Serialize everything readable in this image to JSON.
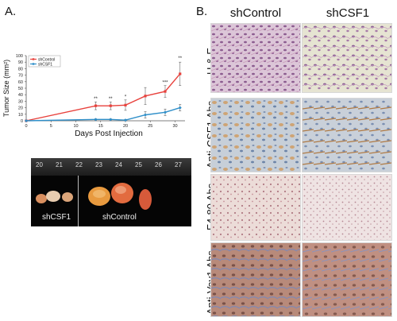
{
  "figure": {
    "panel_a_letter": "A.",
    "panel_b_letter": "B.",
    "photo": {
      "ruler_numbers": [
        "20",
        "21",
        "22",
        "23",
        "24",
        "25",
        "26",
        "27"
      ],
      "left_label": "shCSF1",
      "right_label": "shControl"
    },
    "histology": {
      "columns": [
        "shControl",
        "shCSF1"
      ],
      "rows": [
        "H & E",
        "Anti-CSF1 Abs",
        "F4-80 Abs",
        "Anti-Vav1 Abs"
      ]
    }
  },
  "chart_data": {
    "type": "line",
    "ylabel": "Tumor Size (mm²)",
    "xlabel": "Days Post Injection",
    "xlim": [
      0,
      32
    ],
    "ylim": [
      0,
      100
    ],
    "x_ticks": [
      "0",
      "5",
      "10",
      "15",
      "20",
      "25",
      "30"
    ],
    "y_ticks": [
      "0",
      "10",
      "20",
      "30",
      "40",
      "50",
      "60",
      "70",
      "80",
      "90",
      "100"
    ],
    "legend_position": "top-left",
    "series": [
      {
        "name": "shControl",
        "color": "#e8413c",
        "x": [
          0,
          14,
          17,
          20,
          24,
          28,
          31
        ],
        "values": [
          0,
          23,
          23,
          24,
          38,
          45,
          72
        ],
        "errors": [
          0,
          6,
          6,
          8,
          13,
          9,
          18
        ]
      },
      {
        "name": "shCSF1",
        "color": "#2f8fc9",
        "x": [
          0,
          14,
          17,
          20,
          24,
          28,
          31
        ],
        "values": [
          0,
          2,
          2,
          1,
          9,
          13,
          20
        ],
        "errors": [
          0,
          1,
          1,
          1,
          5,
          5,
          5
        ]
      }
    ],
    "annotations": [
      {
        "x": 14,
        "y": 32,
        "text": "**"
      },
      {
        "x": 17,
        "y": 32,
        "text": "**"
      },
      {
        "x": 20,
        "y": 35,
        "text": "*"
      },
      {
        "x": 28,
        "y": 57,
        "text": "***"
      },
      {
        "x": 31,
        "y": 94,
        "text": "**"
      }
    ]
  }
}
